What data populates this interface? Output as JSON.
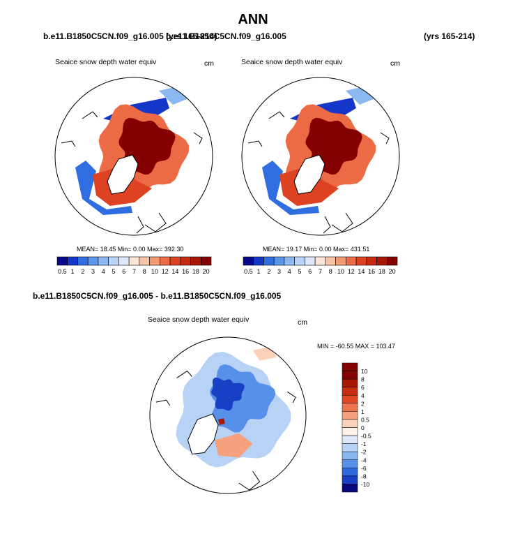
{
  "page": {
    "title": "ANN",
    "left_case": "b.e11.B1850C5CN.f09_g16.005 (yrs 165-214)",
    "right_case": "b.e11.B1850C5CN.f09_g16.005",
    "right_years": "(yrs 165-214)",
    "diff_case": "b.e11.B1850C5CN.f09_g16.005 - b.e11.B1850C5CN.f09_g16.005"
  },
  "panels": [
    {
      "variable": "Seaice snow depth water equiv",
      "units": "cm",
      "stats": "MEAN= 18.45  Min=  0.00  Max= 392.30",
      "colorbar_ticks": [
        "0.5",
        "1",
        "2",
        "3",
        "4",
        "5",
        "6",
        "7",
        "8",
        "10",
        "12",
        "14",
        "16",
        "18",
        "20"
      ]
    },
    {
      "variable": "Seaice snow depth water equiv",
      "units": "cm",
      "stats": "MEAN= 19.17  Min=  0.00  Max= 431.51",
      "colorbar_ticks": [
        "0.5",
        "1",
        "2",
        "3",
        "4",
        "5",
        "6",
        "7",
        "8",
        "10",
        "12",
        "14",
        "16",
        "18",
        "20"
      ]
    }
  ],
  "diff_panel": {
    "variable": "Seaice snow depth water equiv",
    "units": "cm",
    "stats": "MIN = -60.55 MAX = 103.47",
    "colorbar_ticks": [
      "10",
      "8",
      "6",
      "4",
      "2",
      "1",
      "0.5",
      "0",
      "-0.5",
      "-1",
      "-2",
      "-4",
      "-6",
      "-8",
      "-10"
    ]
  },
  "colors": {
    "abs_scale": [
      "#08088a",
      "#1437c8",
      "#2f6ee0",
      "#5a95ea",
      "#8cb8f2",
      "#b9d4f7",
      "#dde9fb",
      "#fbe6d8",
      "#f7c3a6",
      "#f39a72",
      "#ec6b45",
      "#dd4222",
      "#c62a10",
      "#a81606",
      "#840000"
    ],
    "diff_scale": [
      "#840000",
      "#a91705",
      "#c72c11",
      "#df4827",
      "#ef7450",
      "#f6a07d",
      "#fad2bc",
      "#fdf0e6",
      "#dce8fa",
      "#b8d2f6",
      "#8ab5f1",
      "#5790e8",
      "#2f69de",
      "#1740c4",
      "#08087f"
    ],
    "land": "#ffffff",
    "ocean": "#ffffff"
  }
}
